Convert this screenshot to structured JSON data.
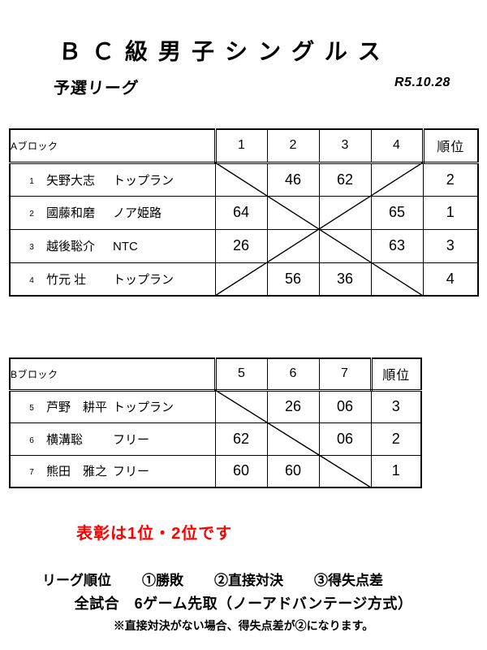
{
  "page": {
    "title": "ＢＣ級男子シングルス",
    "subtitle": "予選リーグ",
    "date": "R5.10.28"
  },
  "block_a": {
    "label": "Aブロック",
    "col_headers": [
      "1",
      "2",
      "3",
      "4"
    ],
    "rank_header": "順位",
    "rows": [
      {
        "no": "1",
        "name": "矢野大志",
        "club": "トップラン",
        "scores": [
          "",
          "46",
          "62",
          ""
        ],
        "rank": "2"
      },
      {
        "no": "2",
        "name": "國藤和磨",
        "club": "ノア姫路",
        "scores": [
          "64",
          "",
          "",
          "65"
        ],
        "rank": "1"
      },
      {
        "no": "3",
        "name": "越後聡介",
        "club": "NTC",
        "scores": [
          "26",
          "",
          "",
          "63"
        ],
        "rank": "3"
      },
      {
        "no": "4",
        "name": "竹元 壮",
        "club": "トップラン",
        "scores": [
          "",
          "56",
          "36",
          ""
        ],
        "rank": "4"
      }
    ],
    "diagonals": [
      "main",
      "anti"
    ]
  },
  "block_b": {
    "label": "Bブロック",
    "col_headers": [
      "5",
      "6",
      "7"
    ],
    "rank_header": "順位",
    "rows": [
      {
        "no": "5",
        "name": "芦野　耕平",
        "club": "トップラン",
        "scores": [
          "",
          "26",
          "06"
        ],
        "rank": "3"
      },
      {
        "no": "6",
        "name": "横溝聡",
        "club": "フリー",
        "scores": [
          "62",
          "",
          "06"
        ],
        "rank": "2"
      },
      {
        "no": "7",
        "name": "熊田　雅之",
        "club": "フリー",
        "scores": [
          "60",
          "60",
          ""
        ],
        "rank": "1"
      }
    ],
    "diagonals": [
      "main"
    ]
  },
  "notice": {
    "text": "表彰は1位・2位です",
    "color": "#ff0000"
  },
  "footer": {
    "line1_parts": [
      "リーグ順位",
      "①勝敗",
      "②直接対決",
      "③得失点差"
    ],
    "line2": "全試合　6ゲーム先取（ノーアドバンテージ方式）",
    "line3": "※直接対決がない場合、得失点差が②になります。"
  }
}
